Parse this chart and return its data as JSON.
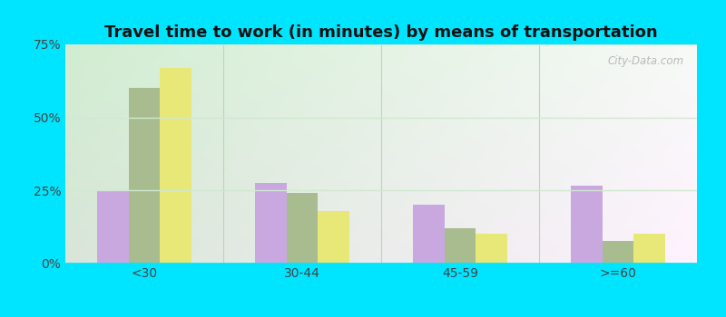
{
  "title": "Travel time to work (in minutes) by means of transportation",
  "categories": [
    "<30",
    "30-44",
    "45-59",
    ">=60"
  ],
  "series": {
    "Public transportation - Pennsylvania": [
      25.0,
      27.5,
      20.0,
      26.5
    ],
    "Other means - Zelienople": [
      60.0,
      24.0,
      12.0,
      7.5
    ],
    "Other means - Pennsylvania": [
      67.0,
      18.0,
      10.0,
      10.0
    ]
  },
  "colors": {
    "Public transportation - Pennsylvania": "#c9a8e0",
    "Other means - Zelienople": "#a8bc90",
    "Other means - Pennsylvania": "#e8e878"
  },
  "ylim": [
    0,
    75
  ],
  "yticks": [
    0,
    25,
    50,
    75
  ],
  "ytick_labels": [
    "0%",
    "25%",
    "50%",
    "75%"
  ],
  "outer_background": "#00e5ff",
  "grid_color": "#d0e8d0",
  "bar_width": 0.2,
  "title_fontsize": 13,
  "legend_fontsize": 9,
  "bg_left_color": "#c8e8c8",
  "bg_right_color": "#e8f0e8",
  "bg_top_color": "#ddeedd",
  "bg_bottom_color": "#f0f8f0"
}
